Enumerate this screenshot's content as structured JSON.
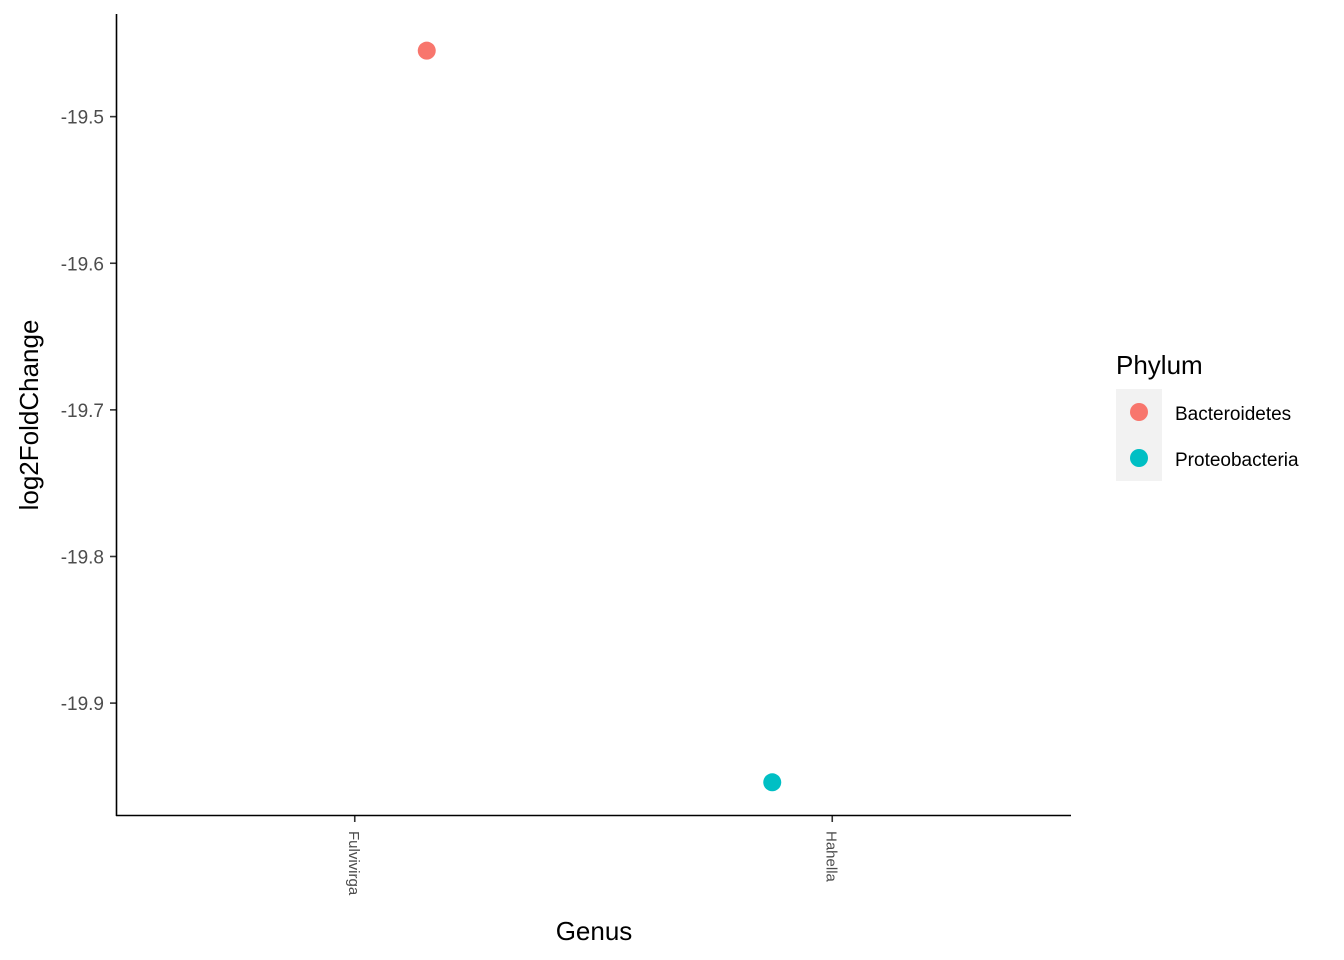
{
  "chart_data": {
    "type": "scatter",
    "xlabel": "Genus",
    "ylabel": "log2FoldChange",
    "categories": [
      "Fulvivirga",
      "Hahella"
    ],
    "ylim": [
      -19.977,
      -19.43
    ],
    "yticks": [
      "-19.5",
      "-19.6",
      "-19.7",
      "-19.8",
      "-19.9"
    ],
    "ytick_values": [
      -19.5,
      -19.6,
      -19.7,
      -19.8,
      -19.9
    ],
    "points": [
      {
        "category": "Fulvivirga",
        "y": -19.455,
        "phylum": "Bacteroidetes"
      },
      {
        "category": "Hahella",
        "y": -19.954,
        "phylum": "Proteobacteria"
      }
    ],
    "legend": {
      "title": "Phylum",
      "position": "right",
      "items": [
        {
          "label": "Bacteroidetes",
          "color": "#F8766D"
        },
        {
          "label": "Proteobacteria",
          "color": "#00BFC4"
        }
      ]
    },
    "grid": false
  }
}
